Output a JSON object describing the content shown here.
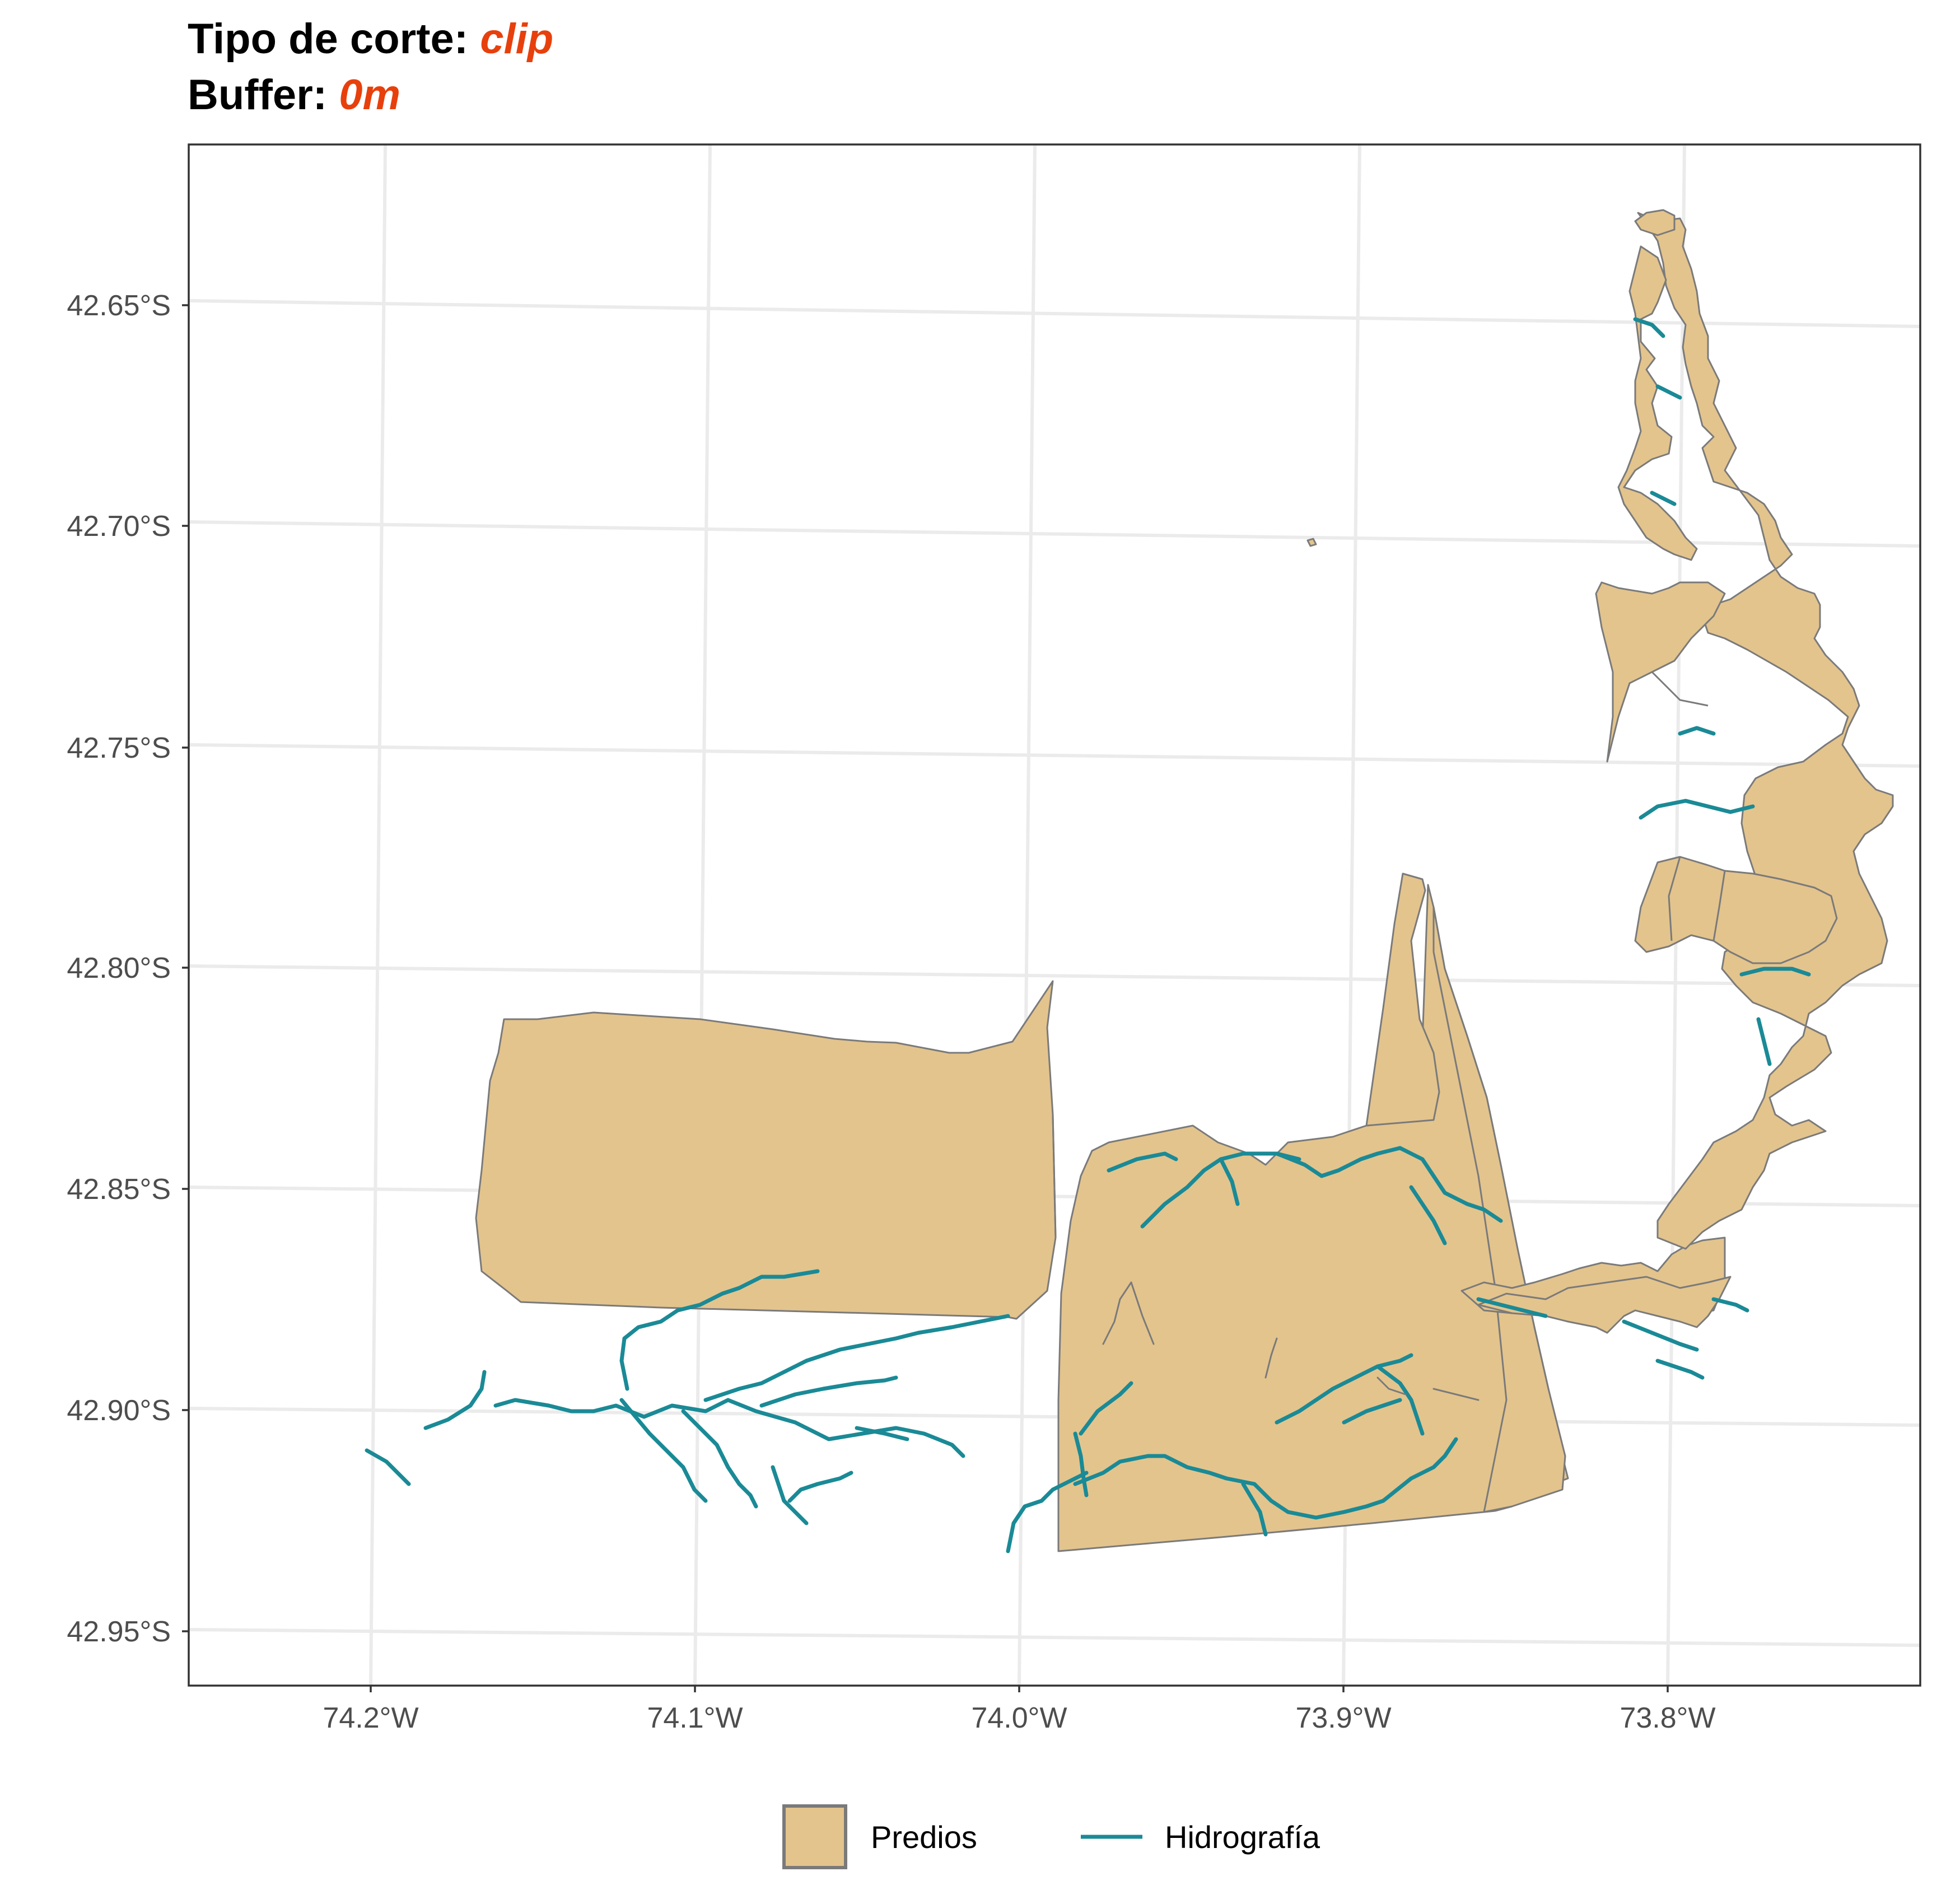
{
  "title": {
    "line1_label": "Tipo de corte: ",
    "line1_value": "clip",
    "line2_label": "Buffer: ",
    "line2_value": "0m"
  },
  "colors": {
    "predios_fill": "#E3C48D",
    "predios_border": "#7a7a7a",
    "hidrografia": "#1A8A96",
    "accent": "#E8400C",
    "grid": "#ebebeb"
  },
  "axes": {
    "x_ticks": [
      "74.2°W",
      "74.1°W",
      "74.0°W",
      "73.9°W",
      "73.8°W"
    ],
    "y_ticks": [
      "42.65°S",
      "42.70°S",
      "42.75°S",
      "42.80°S",
      "42.85°S",
      "42.90°S",
      "42.95°S"
    ]
  },
  "legend": {
    "items": [
      {
        "label": "Predios",
        "symbol": "filled-square"
      },
      {
        "label": "Hidrografía",
        "symbol": "line"
      }
    ]
  },
  "chart_data": {
    "type": "map",
    "title": "Tipo de corte: clip / Buffer: 0m",
    "xlim": [
      "74.25°W",
      "73.75°W"
    ],
    "ylim": [
      "42.96°S",
      "42.62°S"
    ],
    "grid": true,
    "legend_position": "bottom",
    "layers": [
      {
        "name": "Predios",
        "geometry": "polygon"
      },
      {
        "name": "Hidrografía",
        "geometry": "line"
      }
    ]
  }
}
